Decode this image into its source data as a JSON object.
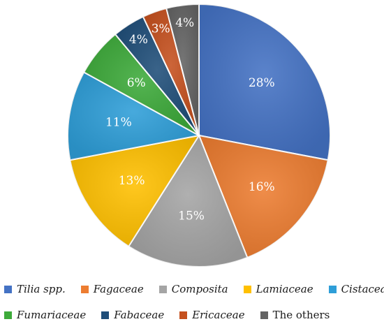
{
  "chart_data": {
    "type": "pie",
    "start_angle_deg": 0,
    "direction": "clockwise",
    "legend_position": "bottom",
    "slices": [
      {
        "name": "Tilia spp.",
        "value": 28,
        "label": "28%",
        "color": "#4472C4",
        "italic": true
      },
      {
        "name": "Fagaceae",
        "value": 16,
        "label": "16%",
        "color": "#ED7D31",
        "italic": true
      },
      {
        "name": "Composita",
        "value": 15,
        "label": "15%",
        "color": "#A5A5A5",
        "italic": true
      },
      {
        "name": "Lamiaceae",
        "value": 13,
        "label": "13%",
        "color": "#FFC000",
        "italic": true
      },
      {
        "name": "Cistaceae",
        "value": 11,
        "label": "11%",
        "color": "#2E9ED8",
        "italic": true
      },
      {
        "name": "Fumariaceae",
        "value": 6,
        "label": "6%",
        "color": "#3DAA3A",
        "italic": true
      },
      {
        "name": "Fabaceae",
        "value": 4,
        "label": "4%",
        "color": "#1F4E79",
        "italic": true
      },
      {
        "name": "Ericaceae",
        "value": 3,
        "label": "3%",
        "color": "#C5501E",
        "italic": true
      },
      {
        "name": "The others",
        "value": 4,
        "label": "4%",
        "color": "#636363",
        "italic": false
      }
    ]
  }
}
